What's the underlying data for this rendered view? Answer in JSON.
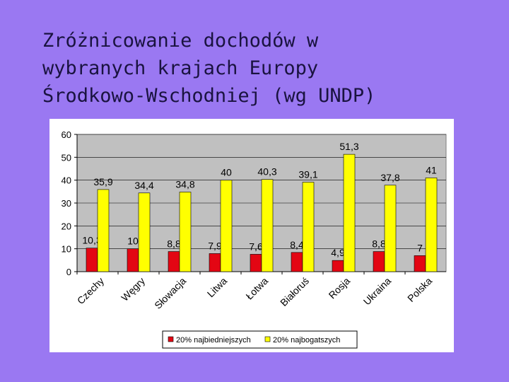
{
  "title_lines": [
    "Zróżnicowanie dochodów w",
    "wybranych krajach Europy",
    "Środkowo-Wschodniej (wg UNDP)"
  ],
  "chart_data": {
    "type": "bar",
    "categories": [
      "Czechy",
      "Węgry",
      "Słowacja",
      "Litwa",
      "Łotwa",
      "Białoruś",
      "Rosja",
      "Ukraina",
      "Polska"
    ],
    "series": [
      {
        "name": "20% najbiedniejszych",
        "color": "#e30613",
        "values": [
          10.3,
          10,
          8.8,
          7.9,
          7.6,
          8.4,
          4.9,
          8.8,
          7
        ],
        "labels": [
          "10,3",
          "10",
          "8,8",
          "7,9",
          "7,6",
          "8,4",
          "4,9",
          "8,8",
          "7"
        ]
      },
      {
        "name": "20% najbogatszych",
        "color": "#ffff00",
        "values": [
          35.9,
          34.4,
          34.8,
          40,
          40.3,
          39.1,
          51.3,
          37.8,
          41
        ],
        "labels": [
          "35,9",
          "34,4",
          "34,8",
          "40",
          "40,3",
          "39,1",
          "51,3",
          "37,8",
          "41"
        ]
      }
    ],
    "ylim": [
      0,
      60
    ],
    "yticks": [
      0,
      10,
      20,
      30,
      40,
      50,
      60
    ],
    "grid": true,
    "legend_position": "bottom",
    "plot_background": "#c0c0c0"
  }
}
